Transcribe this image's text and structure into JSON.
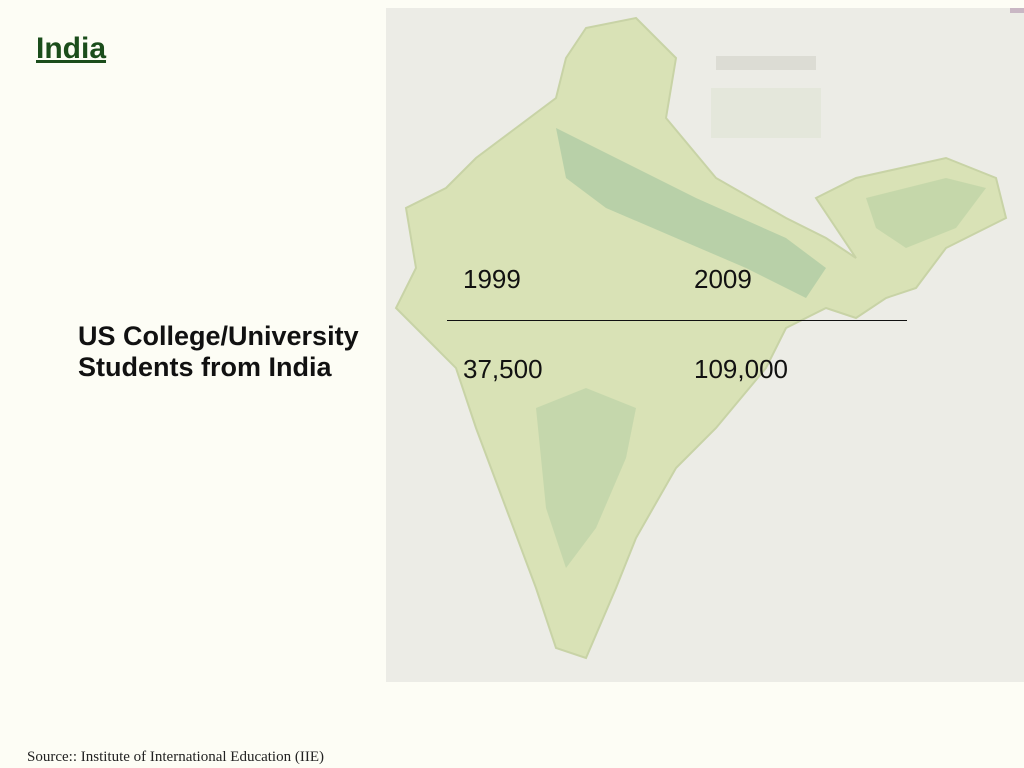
{
  "title": "India",
  "table": {
    "columns": [
      "1999",
      "2009"
    ],
    "row_label": "US College/University Students from India",
    "values": [
      "37,500",
      "109,000"
    ]
  },
  "source": "Source:: Institute of International Education (IIE)"
}
